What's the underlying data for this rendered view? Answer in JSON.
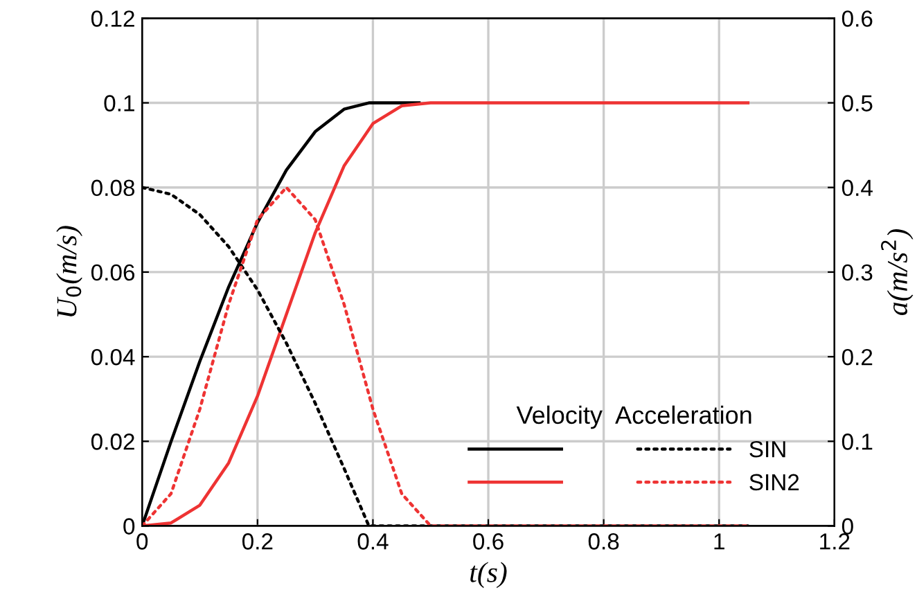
{
  "chart_data": {
    "type": "line",
    "xlabel": "t(s)",
    "ylabel": "U$_{0}$(m/s)",
    "y2label": "a(m/s$^{2}$)",
    "legend_title": "Velocity  Acceleration",
    "legend": "bottom right",
    "grid": true,
    "marker": "none",
    "xlim": [
      0,
      1.2
    ],
    "xticks": [
      0,
      0.2,
      0.4,
      0.6,
      0.8,
      1,
      1.2
    ],
    "ylim": [
      0,
      0.12
    ],
    "yticks": [
      0,
      0.02,
      0.04,
      0.06,
      0.08,
      0.1,
      0.12
    ],
    "y2lim": [
      0,
      0.6
    ],
    "y2ticks": [
      0,
      0.1,
      0.2,
      0.3,
      0.4,
      0.5,
      0.6
    ],
    "series": [
      {
        "color": "#000000",
        "line_style": "solid",
        "x": [
          0,
          0.05,
          0.1,
          0.15,
          0.2,
          0.25,
          0.3,
          0.35,
          0.393,
          0.48
        ],
        "values": [
          0,
          0.0199,
          0.0389,
          0.0565,
          0.0717,
          0.0841,
          0.0932,
          0.0985,
          0.1,
          0.1
        ]
      },
      {
        "color": "#ee3333",
        "line_style": "solid",
        "x": [
          0,
          0.05,
          0.1,
          0.15,
          0.2,
          0.25,
          0.3,
          0.35,
          0.4,
          0.45,
          0.5,
          1.05
        ],
        "values": [
          0,
          0.0007,
          0.0049,
          0.0149,
          0.0307,
          0.05,
          0.0693,
          0.0851,
          0.0951,
          0.0993,
          0.1,
          0.1
        ]
      },
      {
        "name": "SIN",
        "color": "#000000",
        "line_style": "dotted",
        "axis": "y2",
        "x": [
          0,
          0.05,
          0.1,
          0.15,
          0.2,
          0.25,
          0.3,
          0.35,
          0.393,
          1.05
        ],
        "values": [
          0.4,
          0.392,
          0.368,
          0.33,
          0.279,
          0.216,
          0.145,
          0.068,
          0,
          0
        ]
      },
      {
        "name": "SIN2",
        "color": "#ee3333",
        "line_style": "dotted",
        "axis": "y2",
        "x": [
          0,
          0.05,
          0.1,
          0.15,
          0.2,
          0.25,
          0.3,
          0.35,
          0.4,
          0.45,
          0.5,
          1.05
        ],
        "values": [
          0,
          0.038,
          0.138,
          0.262,
          0.362,
          0.4,
          0.362,
          0.262,
          0.138,
          0.038,
          0,
          0
        ]
      }
    ]
  }
}
